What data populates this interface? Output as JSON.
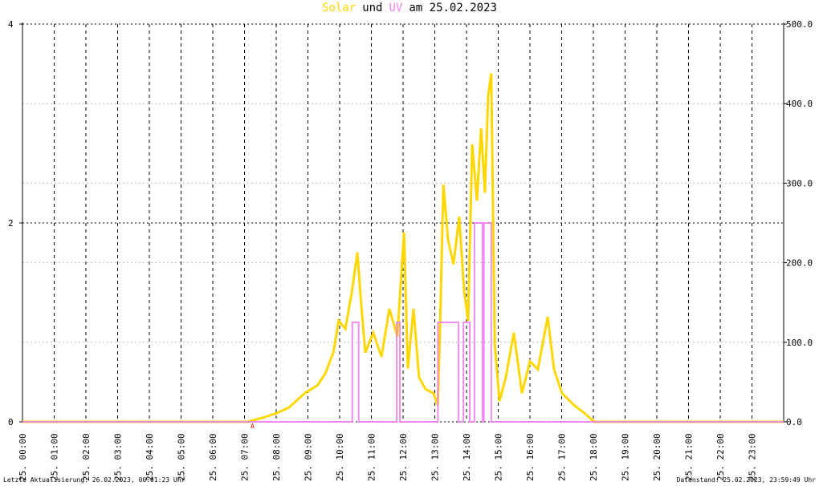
{
  "chart_data": {
    "type": "line",
    "title_joiner": "und",
    "title_suffix": "am 25.02.2023",
    "annotation": "A",
    "footer_left": "Letzte Aktualisierung: 26.02.2023, 00:01:23 Uhr",
    "footer_right": "Datenstand: 25.02.2023, 23:59:49 Uhr",
    "xlim": [
      0,
      24
    ],
    "xticks": [
      {
        "value": 0,
        "label": "25. 00:00"
      },
      {
        "value": 1,
        "label": "25. 01:00"
      },
      {
        "value": 2,
        "label": "25. 02:00"
      },
      {
        "value": 3,
        "label": "25. 03:00"
      },
      {
        "value": 4,
        "label": "25. 04:00"
      },
      {
        "value": 5,
        "label": "25. 05:00"
      },
      {
        "value": 6,
        "label": "25. 06:00"
      },
      {
        "value": 7,
        "label": "25. 07:00"
      },
      {
        "value": 8,
        "label": "25. 08:00"
      },
      {
        "value": 9,
        "label": "25. 09:00"
      },
      {
        "value": 10,
        "label": "25. 10:00"
      },
      {
        "value": 11,
        "label": "25. 11:00"
      },
      {
        "value": 12,
        "label": "25. 12:00"
      },
      {
        "value": 13,
        "label": "25. 13:00"
      },
      {
        "value": 14,
        "label": "25. 14:00"
      },
      {
        "value": 15,
        "label": "25. 15:00"
      },
      {
        "value": 16,
        "label": "25. 16:00"
      },
      {
        "value": 17,
        "label": "25. 17:00"
      },
      {
        "value": 18,
        "label": "25. 18:00"
      },
      {
        "value": 19,
        "label": "25. 19:00"
      },
      {
        "value": 20,
        "label": "25. 20:00"
      },
      {
        "value": 21,
        "label": "25. 21:00"
      },
      {
        "value": 22,
        "label": "25. 22:00"
      },
      {
        "value": 23,
        "label": "25. 23:00"
      }
    ],
    "ylim": [
      0,
      4
    ],
    "yticks": [
      0,
      2,
      4
    ],
    "y2lim": [
      0,
      500
    ],
    "y2ticks": [
      {
        "value": 0,
        "label": "0.0"
      },
      {
        "value": 100,
        "label": "100.0"
      },
      {
        "value": 200,
        "label": "200.0"
      },
      {
        "value": 300,
        "label": "300.0"
      },
      {
        "value": 400,
        "label": "400.0"
      },
      {
        "value": 500,
        "label": "500.0"
      }
    ],
    "grid": true,
    "series": [
      {
        "name": "Solar",
        "color": "#ffd700",
        "axis": "y2",
        "x": [
          0,
          7.1,
          7.65,
          8.02,
          8.4,
          8.9,
          9.3,
          9.55,
          9.8,
          9.97,
          10.18,
          10.38,
          10.56,
          10.68,
          10.81,
          11.06,
          11.32,
          11.57,
          11.82,
          12.03,
          12.15,
          12.33,
          12.5,
          12.71,
          12.96,
          13.09,
          13.16,
          13.27,
          13.42,
          13.59,
          13.77,
          13.92,
          14.05,
          14.18,
          14.33,
          14.46,
          14.58,
          14.68,
          14.78,
          14.89,
          15.04,
          15.24,
          15.49,
          15.75,
          16.0,
          16.25,
          16.56,
          16.76,
          17.01,
          17.39,
          17.72,
          18.03,
          24
        ],
        "values": [
          0,
          0,
          6,
          11,
          18,
          36,
          46,
          61,
          87,
          127,
          117,
          162,
          213,
          147,
          87,
          112,
          82,
          142,
          107,
          238,
          67,
          142,
          56,
          41,
          36,
          21,
          107,
          298,
          228,
          198,
          258,
          167,
          127,
          349,
          278,
          369,
          288,
          409,
          438,
          97,
          26,
          56,
          112,
          36,
          76,
          66,
          132,
          66,
          36,
          21,
          11,
          0,
          0
        ]
      },
      {
        "name": "UV",
        "color": "#ee82ee",
        "x": [
          0,
          10.4,
          10.4,
          10.6,
          10.6,
          11.8,
          11.8,
          11.9,
          11.9,
          13.1,
          13.1,
          13.75,
          13.75,
          13.9,
          13.9,
          14.1,
          14.1,
          14.25,
          14.25,
          14.5,
          14.5,
          14.55,
          14.55,
          14.78,
          14.78,
          24
        ],
        "values": [
          0,
          0,
          1,
          1,
          0,
          0,
          1,
          1,
          0,
          0,
          1,
          1,
          0,
          0,
          1,
          1,
          0,
          0,
          2,
          2,
          0,
          0,
          2,
          2,
          0,
          0
        ]
      }
    ]
  }
}
